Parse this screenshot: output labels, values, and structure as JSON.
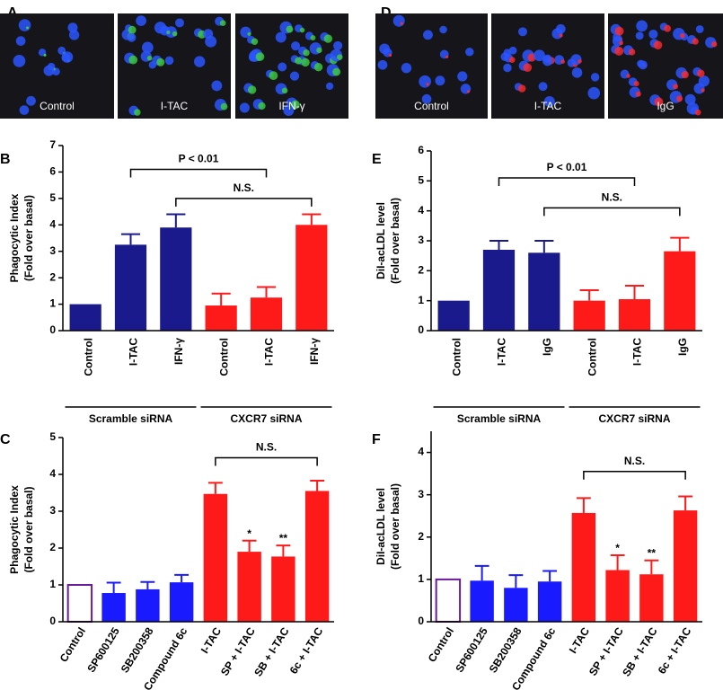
{
  "image_panels": [
    {
      "letter": "A",
      "labels": [
        "Control",
        "I-TAC",
        "IFN-γ"
      ],
      "colors": [
        "#2a55ff",
        "#3fcf3f"
      ]
    },
    {
      "letter": "D",
      "labels": [
        "Control",
        "I-TAC",
        "IgG"
      ],
      "colors": [
        "#2a55ff",
        "#ff2a2a"
      ]
    }
  ],
  "chart_data": [
    {
      "type": "bar",
      "letter": "B",
      "y_label": [
        "Phagocytic Index",
        "(Fold over basal)"
      ],
      "categories": [
        "Control",
        "I-TAC",
        "IFN-γ",
        "Control",
        "I-TAC",
        "IFN-γ"
      ],
      "series": [
        {
          "name": "Scramble siRNA",
          "color": "#1a1a8c",
          "values": [
            1.0,
            3.25,
            3.9,
            null,
            null,
            null
          ],
          "errors": [
            null,
            0.4,
            0.5,
            null,
            null,
            null
          ]
        },
        {
          "name": "CXCR7 siRNA",
          "color": "#ff1a1a",
          "values": [
            null,
            null,
            null,
            0.95,
            1.25,
            4.0
          ],
          "errors": [
            null,
            null,
            null,
            0.45,
            0.4,
            0.4
          ]
        }
      ],
      "ylim": [
        0,
        7
      ],
      "yticks": [
        0,
        1,
        2,
        3,
        4,
        5,
        6,
        7
      ],
      "brackets": [
        {
          "label": "P < 0.01",
          "from": 1,
          "to": 4,
          "y": 6.1
        },
        {
          "label": "N.S.",
          "from": 2,
          "to": 5,
          "y": 5.0
        }
      ]
    },
    {
      "type": "bar",
      "letter": "E",
      "y_label": [
        "DiI-acLDL level",
        "(Fold over basal)"
      ],
      "categories": [
        "Control",
        "I-TAC",
        "IgG",
        "Control",
        "I-TAC",
        "IgG"
      ],
      "series": [
        {
          "name": "Scramble siRNA",
          "color": "#1a1a8c",
          "values": [
            1.0,
            2.7,
            2.6,
            null,
            null,
            null
          ],
          "errors": [
            null,
            0.3,
            0.4,
            null,
            null,
            null
          ]
        },
        {
          "name": "CXCR7 siRNA",
          "color": "#ff1a1a",
          "values": [
            null,
            null,
            null,
            1.0,
            1.05,
            2.65
          ],
          "errors": [
            null,
            null,
            null,
            0.35,
            0.45,
            0.45
          ]
        }
      ],
      "ylim": [
        0,
        6
      ],
      "yticks": [
        0,
        1,
        2,
        3,
        4,
        5,
        6
      ],
      "brackets": [
        {
          "label": "P < 0.01",
          "from": 1,
          "to": 4,
          "y": 5.1
        },
        {
          "label": "N.S.",
          "from": 2,
          "to": 5,
          "y": 4.1
        }
      ]
    },
    {
      "type": "bar",
      "letter": "C",
      "y_label": [
        "Phagocytic Index",
        "(Fold over basal)"
      ],
      "categories": [
        "Control",
        "SP600125",
        "SB200358",
        "Compound 6c",
        "I-TAC",
        "SP + I-TAC",
        "SB + I-TAC",
        "6c + I-TAC"
      ],
      "series": [
        {
          "color": "#6a1b9a",
          "outline": true,
          "values": [
            1.0,
            null,
            null,
            null,
            null,
            null,
            null,
            null
          ],
          "errors": [
            null,
            null,
            null,
            null,
            null,
            null,
            null,
            null
          ]
        },
        {
          "color": "#1a1aff",
          "values": [
            null,
            0.78,
            0.88,
            1.07,
            null,
            null,
            null,
            null
          ],
          "errors": [
            null,
            0.28,
            0.2,
            0.2,
            null,
            null,
            null,
            null
          ]
        },
        {
          "color": "#ff1a1a",
          "values": [
            null,
            null,
            null,
            null,
            3.47,
            1.9,
            1.77,
            3.55
          ],
          "errors": [
            null,
            null,
            null,
            null,
            0.3,
            0.3,
            0.3,
            0.28
          ],
          "stars": [
            null,
            null,
            null,
            null,
            null,
            "*",
            "**",
            null
          ]
        }
      ],
      "ylim": [
        0,
        5
      ],
      "yticks": [
        0,
        1,
        2,
        3,
        4,
        5
      ],
      "brackets": [
        {
          "label": "N.S.",
          "from": 4,
          "to": 7,
          "y": 4.45
        }
      ]
    },
    {
      "type": "bar",
      "letter": "F",
      "y_label": [
        "DiI-acLDL level",
        "(Fold over basal)"
      ],
      "categories": [
        "Control",
        "SP600125",
        "SB200358",
        "Compound 6c",
        "I-TAC",
        "SP + I-TAC",
        "SB + I-TAC",
        "6c + I-TAC"
      ],
      "series": [
        {
          "color": "#6a1b9a",
          "outline": true,
          "values": [
            1.0,
            null,
            null,
            null,
            null,
            null,
            null,
            null
          ],
          "errors": [
            null,
            null,
            null,
            null,
            null,
            null,
            null,
            null
          ]
        },
        {
          "color": "#1a1aff",
          "values": [
            null,
            0.97,
            0.8,
            0.95,
            null,
            null,
            null,
            null
          ],
          "errors": [
            null,
            0.35,
            0.3,
            0.25,
            null,
            null,
            null,
            null
          ]
        },
        {
          "color": "#ff1a1a",
          "values": [
            null,
            null,
            null,
            null,
            2.57,
            1.22,
            1.12,
            2.63
          ],
          "errors": [
            null,
            null,
            null,
            null,
            0.35,
            0.35,
            0.33,
            0.33
          ],
          "stars": [
            null,
            null,
            null,
            null,
            null,
            "*",
            "**",
            null
          ]
        }
      ],
      "ylim": [
        0,
        4.5
      ],
      "yticks": [
        0,
        1,
        2,
        3,
        4
      ],
      "brackets": [
        {
          "label": "N.S.",
          "from": 4,
          "to": 7,
          "y": 3.55
        }
      ]
    }
  ]
}
